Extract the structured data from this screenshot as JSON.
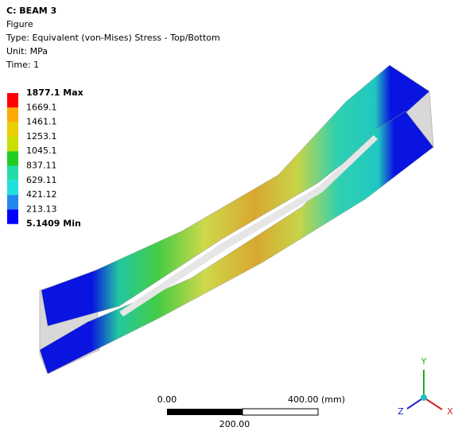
{
  "header": {
    "title": "C: BEAM 3",
    "lines": [
      "Figure",
      "Type: Equivalent (von-Mises) Stress - Top/Bottom",
      "Unit: MPa",
      "Time: 1"
    ]
  },
  "legend": {
    "labels": [
      "1877.1 Max",
      "1669.1",
      "1461.1",
      "1253.1",
      "1045.1",
      "837.11",
      "629.11",
      "421.12",
      "213.13",
      "5.1409 Min"
    ],
    "colors": [
      "#ff0000",
      "#ffaa00",
      "#e8d000",
      "#c8e000",
      "#22cc22",
      "#22ddaa",
      "#22e0e0",
      "#2288ee",
      "#0000ff"
    ]
  },
  "scale_bar": {
    "start": "0.00",
    "end": "400.00 (mm)",
    "middle": "200.00"
  },
  "triad": {
    "y": "Y",
    "z": "Z",
    "x": "X"
  }
}
